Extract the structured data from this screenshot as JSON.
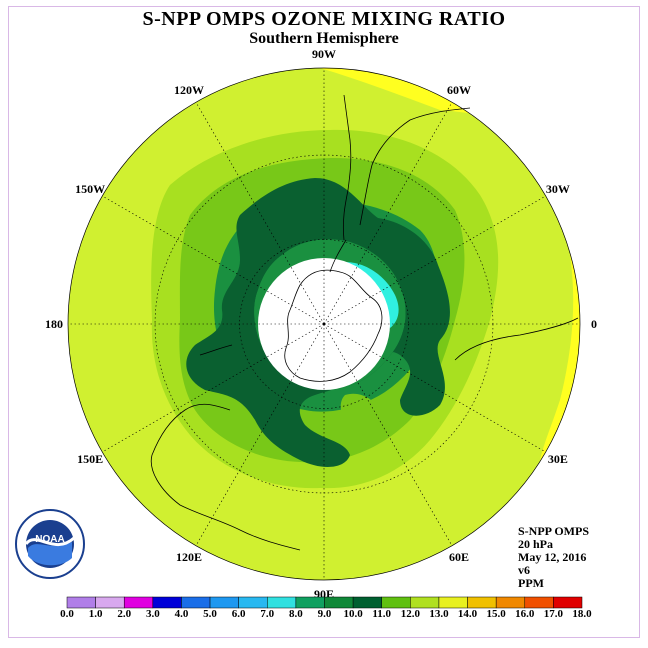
{
  "title": "S-NPP OMPS OZONE MIXING RATIO",
  "subtitle": "Southern Hemisphere",
  "longitude_labels": [
    {
      "text": "90W",
      "lon": -90
    },
    {
      "text": "60W",
      "lon": -60
    },
    {
      "text": "30W",
      "lon": -30
    },
    {
      "text": "0",
      "lon": 0
    },
    {
      "text": "30E",
      "lon": 30
    },
    {
      "text": "60E",
      "lon": 60
    },
    {
      "text": "90E",
      "lon": 90
    },
    {
      "text": "120E",
      "lon": 120
    },
    {
      "text": "150E",
      "lon": 150
    },
    {
      "text": "180",
      "lon": 180
    },
    {
      "text": "150W",
      "lon": -150
    },
    {
      "text": "120W",
      "lon": -120
    }
  ],
  "info": {
    "instrument": "S-NPP OMPS",
    "level": "20 hPa",
    "date": "May 12, 2016",
    "version": "v6",
    "units": "PPM"
  },
  "logo": {
    "text": "NOAA",
    "ring_text": "NATIONAL OCEANIC AND ATMOSPHERIC ADMINISTRATION · U.S. DEPARTMENT OF COMMERCE"
  },
  "colorbar": {
    "labels": [
      "0.0",
      "1.0",
      "2.0",
      "3.0",
      "4.0",
      "5.0",
      "6.0",
      "7.0",
      "8.0",
      "9.0",
      "10.0",
      "11.0",
      "12.0",
      "13.0",
      "14.0",
      "15.0",
      "16.0",
      "17.0",
      "18.0"
    ],
    "colors": [
      "#b07ee8",
      "#d8a8ee",
      "#e000e0",
      "#0000d8",
      "#1a6ee8",
      "#1e98f0",
      "#28b8f0",
      "#30e0e0",
      "#10a060",
      "#108838",
      "#006030",
      "#60c010",
      "#b0e020",
      "#e8f020",
      "#f0c000",
      "#f08800",
      "#f05000",
      "#e00000",
      "#806040"
    ]
  },
  "colors": {
    "background_field": "#d0f030",
    "level_11": "#a8e020",
    "level_10": "#78c818",
    "level_9": "#1a9040",
    "level_8": "#0a6030",
    "high_13": "#ffff20",
    "cyan_7": "#30f0e0",
    "no_data": "#ffffff"
  }
}
